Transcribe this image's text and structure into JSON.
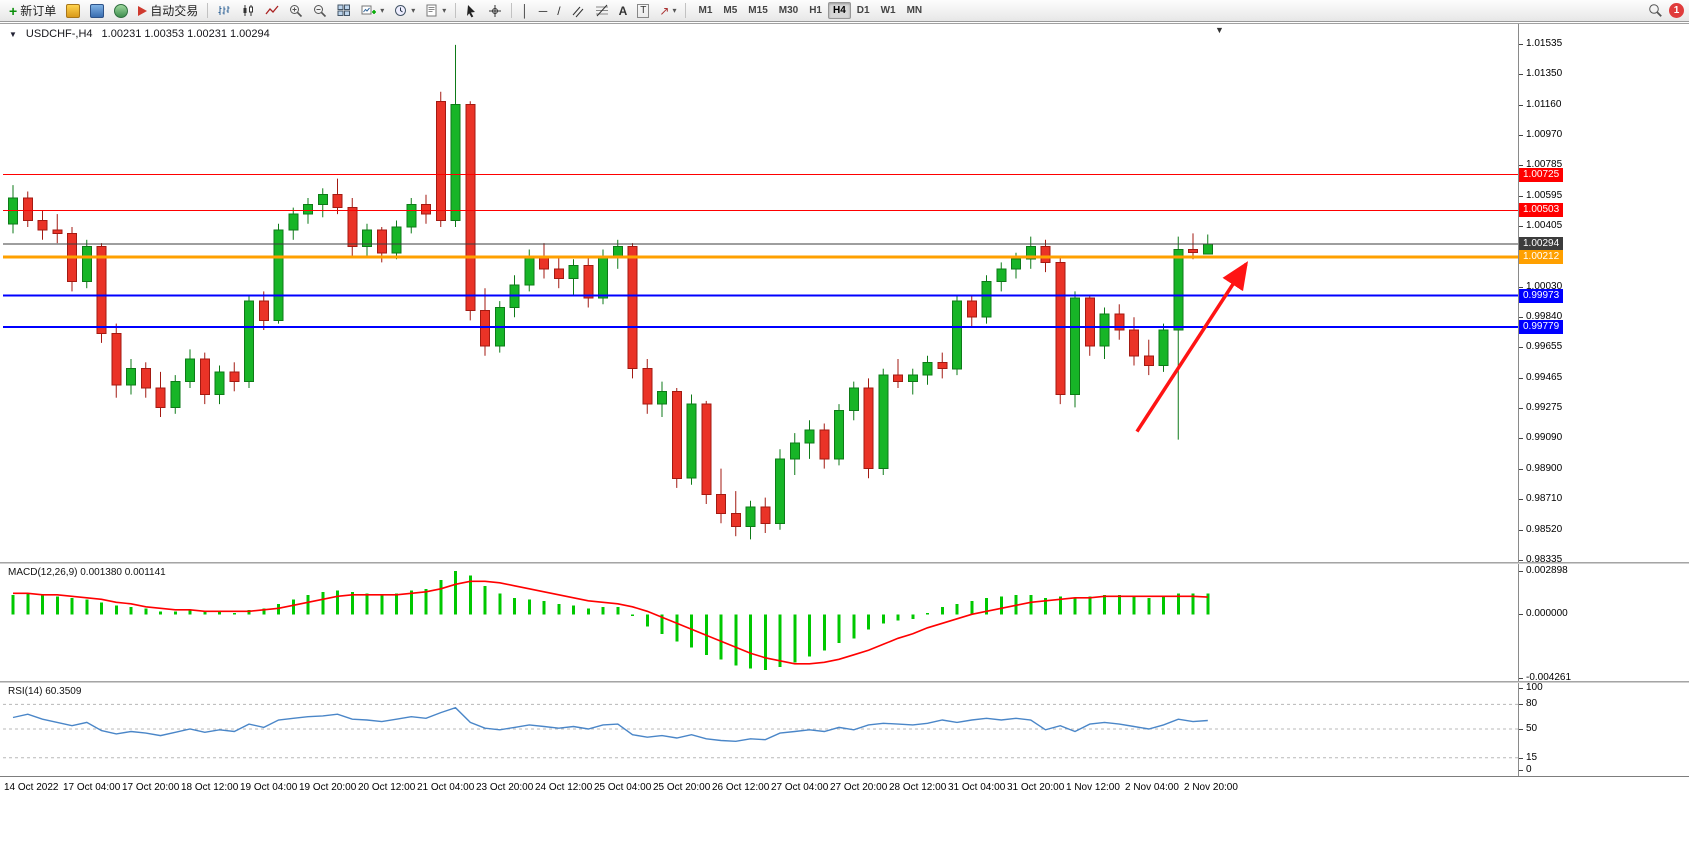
{
  "toolbar": {
    "new_order": "新订单",
    "auto_trading": "自动交易",
    "timeframes": [
      "M1",
      "M5",
      "M15",
      "M30",
      "H1",
      "H4",
      "D1",
      "W1",
      "MN"
    ],
    "active_timeframe": "H4",
    "notification_count": "1",
    "icons": {
      "plus": "+",
      "caret": "▾",
      "vertical_line": "│",
      "horizontal_line": "─",
      "trendline": "/",
      "text_tool": "A",
      "label_tool": "T",
      "arrow_tool": "↗",
      "shift_marker": "▼",
      "chart_menu": "▼"
    }
  },
  "chart_data": [
    {
      "type": "candlestick",
      "symbol": "USDCHF-",
      "period": "H4",
      "title_symbol": "USDCHF-,H4",
      "title_ohlc": "1.00231 1.00353 1.00231 1.00294",
      "current_price": 1.00294,
      "ylim": [
        0.9832,
        1.0166
      ],
      "up_color": "#17b527",
      "down_color": "#ea3327",
      "up_border": "#0e7a18",
      "down_border": "#a31a12",
      "y_ticks": [
        "1.01535",
        "1.01350",
        "1.01160",
        "1.00970",
        "1.00785",
        "1.00595",
        "1.00405",
        "1.00220",
        "1.00030",
        "0.99840",
        "0.99655",
        "0.99465",
        "0.99275",
        "0.99090",
        "0.98900",
        "0.98710",
        "0.98520",
        "0.98335"
      ],
      "x_labels": [
        "14 Oct 2022",
        "17 Oct 04:00",
        "17 Oct 20:00",
        "18 Oct 12:00",
        "19 Oct 04:00",
        "19 Oct 20:00",
        "20 Oct 12:00",
        "21 Oct 04:00",
        "23 Oct 20:00",
        "24 Oct 12:00",
        "25 Oct 04:00",
        "25 Oct 20:00",
        "26 Oct 12:00",
        "27 Oct 04:00",
        "27 Oct 20:00",
        "28 Oct 12:00",
        "31 Oct 04:00",
        "31 Oct 20:00",
        "1 Nov 12:00",
        "2 Nov 04:00",
        "2 Nov 20:00"
      ],
      "bars_per_label": 4,
      "candles": [
        [
          1.0042,
          1.0066,
          1.0036,
          1.0058
        ],
        [
          1.0058,
          1.0062,
          1.004,
          1.0044
        ],
        [
          1.0044,
          1.005,
          1.0032,
          1.0038
        ],
        [
          1.0038,
          1.0048,
          1.003,
          1.0036
        ],
        [
          1.0036,
          1.004,
          1.0,
          1.0006
        ],
        [
          1.0006,
          1.0032,
          1.0002,
          1.0028
        ],
        [
          1.0028,
          1.003,
          0.9968,
          0.9974
        ],
        [
          0.9974,
          0.998,
          0.9934,
          0.9942
        ],
        [
          0.9942,
          0.9958,
          0.9936,
          0.9952
        ],
        [
          0.9952,
          0.9956,
          0.9934,
          0.994
        ],
        [
          0.994,
          0.995,
          0.9922,
          0.9928
        ],
        [
          0.9928,
          0.9948,
          0.9924,
          0.9944
        ],
        [
          0.9944,
          0.9964,
          0.994,
          0.9958
        ],
        [
          0.9958,
          0.9962,
          0.993,
          0.9936
        ],
        [
          0.9936,
          0.9954,
          0.993,
          0.995
        ],
        [
          0.995,
          0.9956,
          0.9938,
          0.9944
        ],
        [
          0.9944,
          0.9998,
          0.994,
          0.9994
        ],
        [
          0.9994,
          1.0,
          0.9976,
          0.9982
        ],
        [
          0.9982,
          1.0042,
          0.998,
          1.0038
        ],
        [
          1.0038,
          1.0052,
          1.0032,
          1.0048
        ],
        [
          1.0048,
          1.0058,
          1.0042,
          1.0054
        ],
        [
          1.0054,
          1.0064,
          1.0046,
          1.006
        ],
        [
          1.006,
          1.007,
          1.0048,
          1.0052
        ],
        [
          1.0052,
          1.0058,
          1.0022,
          1.0028
        ],
        [
          1.0028,
          1.0042,
          1.0022,
          1.0038
        ],
        [
          1.0038,
          1.004,
          1.0018,
          1.0024
        ],
        [
          1.0024,
          1.0044,
          1.002,
          1.004
        ],
        [
          1.004,
          1.0058,
          1.0036,
          1.0054
        ],
        [
          1.0054,
          1.006,
          1.0042,
          1.0048
        ],
        [
          1.0118,
          1.0124,
          1.004,
          1.0044
        ],
        [
          1.0044,
          1.0153,
          1.004,
          1.0116
        ],
        [
          1.0116,
          1.0118,
          0.9982,
          0.9988
        ],
        [
          0.9988,
          1.0002,
          0.996,
          0.9966
        ],
        [
          0.9966,
          0.9994,
          0.9962,
          0.999
        ],
        [
          0.999,
          1.001,
          0.9984,
          1.0004
        ],
        [
          1.0004,
          1.0026,
          1.0,
          1.0022
        ],
        [
          1.0022,
          1.003,
          1.0008,
          1.0014
        ],
        [
          1.0014,
          1.0022,
          1.0002,
          1.0008
        ],
        [
          1.0008,
          1.002,
          0.9998,
          1.0016
        ],
        [
          1.0016,
          1.0022,
          0.999,
          0.9996
        ],
        [
          0.9996,
          1.0026,
          0.9992,
          1.0022
        ],
        [
          1.0022,
          1.0032,
          1.0014,
          1.0028
        ],
        [
          1.0028,
          1.003,
          0.9946,
          0.9952
        ],
        [
          0.9952,
          0.9958,
          0.9924,
          0.993
        ],
        [
          0.993,
          0.9944,
          0.9922,
          0.9938
        ],
        [
          0.9938,
          0.994,
          0.9878,
          0.9884
        ],
        [
          0.9884,
          0.9936,
          0.988,
          0.993
        ],
        [
          0.993,
          0.9932,
          0.9868,
          0.9874
        ],
        [
          0.9874,
          0.989,
          0.9856,
          0.9862
        ],
        [
          0.9862,
          0.9876,
          0.9848,
          0.9854
        ],
        [
          0.9854,
          0.987,
          0.9846,
          0.9866
        ],
        [
          0.9866,
          0.9872,
          0.985,
          0.9856
        ],
        [
          0.9856,
          0.9902,
          0.9852,
          0.9896
        ],
        [
          0.9896,
          0.9912,
          0.9886,
          0.9906
        ],
        [
          0.9906,
          0.992,
          0.9896,
          0.9914
        ],
        [
          0.9914,
          0.9918,
          0.989,
          0.9896
        ],
        [
          0.9896,
          0.993,
          0.9892,
          0.9926
        ],
        [
          0.9926,
          0.9944,
          0.992,
          0.994
        ],
        [
          0.994,
          0.9946,
          0.9884,
          0.989
        ],
        [
          0.989,
          0.9952,
          0.9886,
          0.9948
        ],
        [
          0.9948,
          0.9958,
          0.994,
          0.9944
        ],
        [
          0.9944,
          0.9952,
          0.9936,
          0.9948
        ],
        [
          0.9948,
          0.996,
          0.9942,
          0.9956
        ],
        [
          0.9956,
          0.9962,
          0.9946,
          0.9952
        ],
        [
          0.9952,
          0.9998,
          0.9948,
          0.9994
        ],
        [
          0.9994,
          0.9998,
          0.9978,
          0.9984
        ],
        [
          0.9984,
          1.001,
          0.998,
          1.0006
        ],
        [
          1.0006,
          1.0018,
          1.0,
          1.0014
        ],
        [
          1.0014,
          1.0024,
          1.0008,
          1.002
        ],
        [
          1.002,
          1.0034,
          1.0014,
          1.0028
        ],
        [
          1.0028,
          1.0032,
          1.0012,
          1.0018
        ],
        [
          1.0018,
          1.0022,
          0.993,
          0.9936
        ],
        [
          0.9936,
          1.0,
          0.9928,
          0.9996
        ],
        [
          0.9996,
          0.9998,
          0.996,
          0.9966
        ],
        [
          0.9966,
          0.999,
          0.9958,
          0.9986
        ],
        [
          0.9986,
          0.9992,
          0.997,
          0.9976
        ],
        [
          0.9976,
          0.9984,
          0.9954,
          0.996
        ],
        [
          0.996,
          0.997,
          0.9948,
          0.9954
        ],
        [
          0.9954,
          0.998,
          0.995,
          0.9976
        ],
        [
          0.9976,
          1.0034,
          0.9908,
          1.0026
        ],
        [
          1.0026,
          1.0036,
          1.002,
          1.0024
        ],
        [
          1.00231,
          1.00353,
          1.00231,
          1.00294
        ]
      ],
      "hlines": [
        {
          "price": 1.00725,
          "color": "#ff0000",
          "width": 1,
          "label": "1.00725"
        },
        {
          "price": 1.00503,
          "color": "#ff0000",
          "width": 1,
          "label": "1.00503"
        },
        {
          "price": 1.00294,
          "color": "#3c3c3c",
          "width": 1,
          "label": "1.00294",
          "role": "current-price"
        },
        {
          "price": 1.00212,
          "color": "#ffa000",
          "width": 3,
          "label": "1.00212"
        },
        {
          "price": 0.99973,
          "color": "#0000ff",
          "width": 2,
          "label": "0.99973"
        },
        {
          "price": 0.99779,
          "color": "#0000ff",
          "width": 2,
          "label": "0.99779"
        }
      ],
      "arrow": {
        "color": "#ff1414",
        "width": 3.5,
        "from": {
          "bar": 76.2,
          "price": 0.9913
        },
        "to": {
          "bar": 83.6,
          "price": 1.0017
        }
      }
    },
    {
      "type": "bar",
      "name": "MACD",
      "label": "MACD(12,26,9) 0.001380 0.001141",
      "value_main": "0.001380",
      "value_signal": "0.001141",
      "ylim": [
        -0.00445,
        0.00335
      ],
      "histogram_color": "#00c800",
      "signal_color": "#ff0000",
      "y_ticks": [
        {
          "v": 0.002898,
          "t": "0.002898"
        },
        {
          "v": 0,
          "t": "0.000000"
        },
        {
          "v": -0.004261,
          "t": "-0.004261"
        }
      ],
      "histogram": [
        0.0013,
        0.0014,
        0.0013,
        0.0012,
        0.0011,
        0.001,
        0.0008,
        0.0006,
        0.0005,
        0.0004,
        0.0002,
        0.0002,
        0.0003,
        0.0002,
        0.0002,
        0.0001,
        0.0003,
        0.0004,
        0.0007,
        0.001,
        0.0013,
        0.0015,
        0.0016,
        0.0015,
        0.0014,
        0.0013,
        0.0014,
        0.0016,
        0.0017,
        0.0023,
        0.002898,
        0.0026,
        0.0019,
        0.0014,
        0.0011,
        0.001,
        0.0009,
        0.0007,
        0.0006,
        0.0004,
        0.0005,
        0.0005,
        -0.0001,
        -0.0008,
        -0.0013,
        -0.0018,
        -0.0022,
        -0.0027,
        -0.003,
        -0.0034,
        -0.0036,
        -0.0037,
        -0.0035,
        -0.0032,
        -0.0028,
        -0.0024,
        -0.0019,
        -0.0016,
        -0.001,
        -0.0006,
        -0.0004,
        -0.0003,
        0.0001,
        0.0005,
        0.0007,
        0.0009,
        0.0011,
        0.0012,
        0.0013,
        0.0013,
        0.0011,
        0.0012,
        0.0011,
        0.0012,
        0.0013,
        0.0013,
        0.0012,
        0.0011,
        0.0012,
        0.0014,
        0.0014,
        0.00138
      ],
      "signal": [
        0.0014,
        0.0014,
        0.0013,
        0.0013,
        0.0012,
        0.0011,
        0.001,
        0.0008,
        0.0007,
        0.0005,
        0.0004,
        0.0003,
        0.0003,
        0.0002,
        0.0002,
        0.0002,
        0.0002,
        0.0003,
        0.0004,
        0.0006,
        0.0008,
        0.001,
        0.0012,
        0.0013,
        0.0013,
        0.0013,
        0.0013,
        0.0014,
        0.0015,
        0.0017,
        0.002,
        0.0022,
        0.0022,
        0.0021,
        0.0019,
        0.0017,
        0.0015,
        0.0013,
        0.0011,
        0.0009,
        0.0008,
        0.0007,
        0.0005,
        0.0002,
        -0.0002,
        -0.0006,
        -0.001,
        -0.0014,
        -0.0018,
        -0.0022,
        -0.0026,
        -0.0029,
        -0.0031,
        -0.0033,
        -0.0033,
        -0.0032,
        -0.003,
        -0.0027,
        -0.0024,
        -0.002,
        -0.0016,
        -0.0013,
        -0.0009,
        -0.0006,
        -0.0003,
        0.0,
        0.0002,
        0.0004,
        0.0006,
        0.0008,
        0.0009,
        0.001,
        0.0011,
        0.0011,
        0.0012,
        0.0012,
        0.0012,
        0.0012,
        0.0012,
        0.0012,
        0.0012,
        0.001141
      ]
    },
    {
      "type": "line",
      "name": "RSI",
      "label": "RSI(14) 60.3509",
      "value": "60.3509",
      "ylim": [
        0,
        100
      ],
      "levels": [
        80,
        50,
        15
      ],
      "line_color": "#4a86c8",
      "y_ticks": [
        {
          "v": 100,
          "t": "100"
        },
        {
          "v": 80,
          "t": "80"
        },
        {
          "v": 50,
          "t": "50"
        },
        {
          "v": 15,
          "t": "15"
        },
        {
          "v": 0,
          "t": "0"
        }
      ],
      "values": [
        64,
        68,
        62,
        58,
        54,
        58,
        48,
        44,
        47,
        45,
        42,
        46,
        50,
        46,
        49,
        47,
        56,
        52,
        61,
        63,
        65,
        66,
        68,
        62,
        61,
        59,
        62,
        65,
        63,
        70,
        76,
        58,
        51,
        49,
        52,
        55,
        53,
        51,
        53,
        50,
        55,
        56,
        43,
        40,
        42,
        39,
        43,
        38,
        36,
        35,
        38,
        37,
        45,
        47,
        49,
        47,
        52,
        49,
        55,
        57,
        56,
        55,
        57,
        61,
        58,
        61,
        63,
        61,
        63,
        61,
        49,
        54,
        47,
        56,
        58,
        56,
        53,
        50,
        55,
        62,
        59,
        60.3509
      ]
    }
  ]
}
